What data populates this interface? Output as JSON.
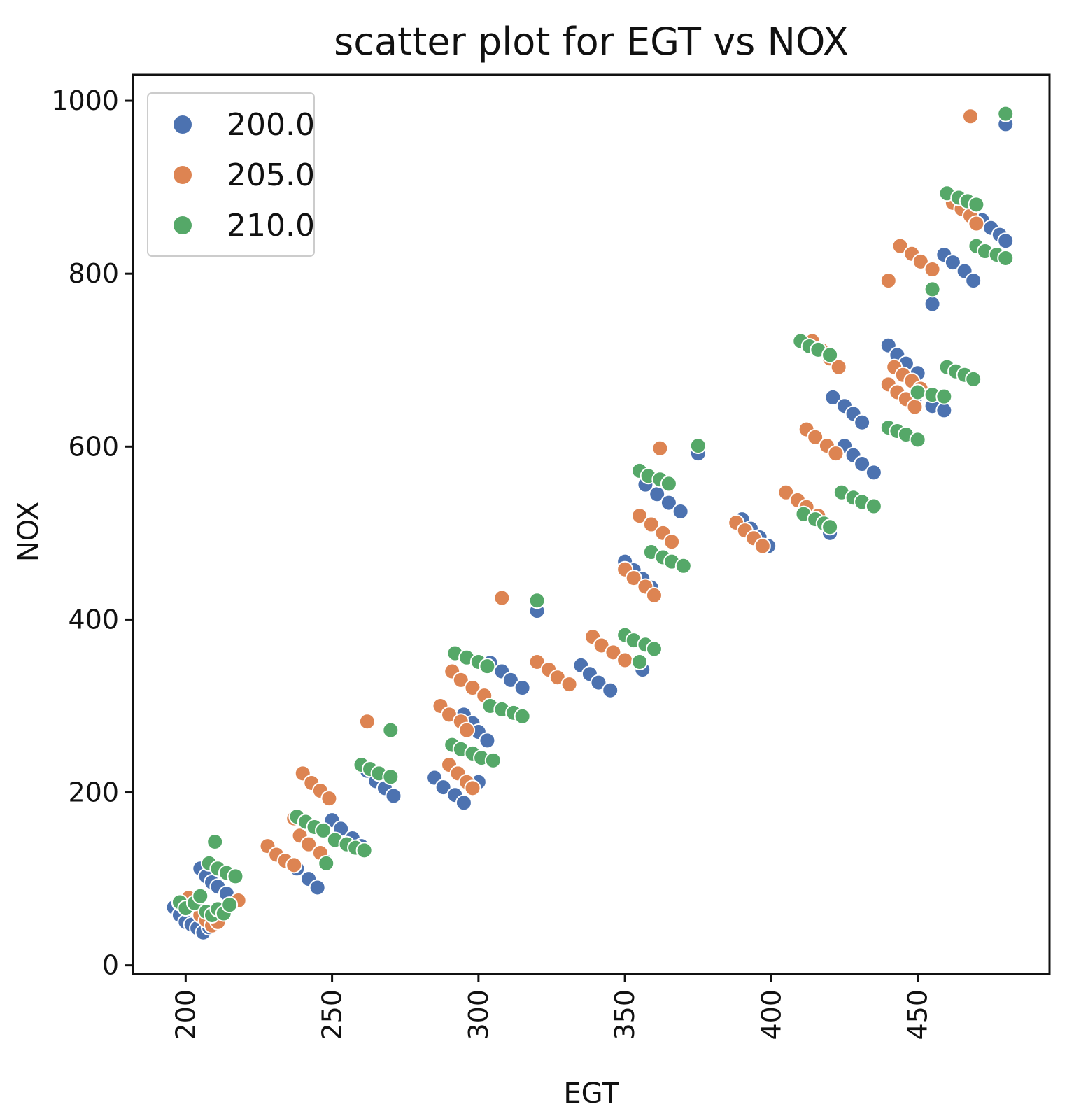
{
  "chart_data": {
    "type": "scatter",
    "title": "scatter plot for EGT vs NOX",
    "xlabel": "EGT",
    "ylabel": "NOX",
    "xlim": [
      182,
      495
    ],
    "ylim": [
      -10,
      1030
    ],
    "xticks": [
      "200",
      "250",
      "300",
      "350",
      "400",
      "450"
    ],
    "yticks": [
      "0",
      "200",
      "400",
      "600",
      "800",
      "1000"
    ],
    "grid": false,
    "legend": {
      "position": "top-left"
    },
    "series": [
      {
        "name": "200.0",
        "color": "#4c72b0",
        "points": [
          [
            196,
            67
          ],
          [
            198,
            58
          ],
          [
            200,
            50
          ],
          [
            202,
            47
          ],
          [
            204,
            43
          ],
          [
            206,
            38
          ],
          [
            208,
            44
          ],
          [
            210,
            48
          ],
          [
            205,
            112
          ],
          [
            207,
            103
          ],
          [
            209,
            96
          ],
          [
            211,
            91
          ],
          [
            214,
            83
          ],
          [
            238,
            112
          ],
          [
            242,
            100
          ],
          [
            245,
            90
          ],
          [
            248,
            120
          ],
          [
            250,
            168
          ],
          [
            253,
            158
          ],
          [
            257,
            147
          ],
          [
            260,
            138
          ],
          [
            262,
            225
          ],
          [
            265,
            213
          ],
          [
            268,
            205
          ],
          [
            271,
            196
          ],
          [
            285,
            217
          ],
          [
            288,
            206
          ],
          [
            292,
            197
          ],
          [
            295,
            188
          ],
          [
            295,
            290
          ],
          [
            298,
            280
          ],
          [
            300,
            270
          ],
          [
            303,
            260
          ],
          [
            300,
            212
          ],
          [
            304,
            350
          ],
          [
            308,
            340
          ],
          [
            311,
            330
          ],
          [
            315,
            321
          ],
          [
            320,
            410
          ],
          [
            335,
            347
          ],
          [
            338,
            337
          ],
          [
            341,
            327
          ],
          [
            345,
            318
          ],
          [
            350,
            467
          ],
          [
            353,
            457
          ],
          [
            356,
            447
          ],
          [
            359,
            437
          ],
          [
            356,
            342
          ],
          [
            357,
            556
          ],
          [
            361,
            545
          ],
          [
            365,
            535
          ],
          [
            369,
            525
          ],
          [
            375,
            592
          ],
          [
            390,
            516
          ],
          [
            393,
            505
          ],
          [
            396,
            495
          ],
          [
            399,
            485
          ],
          [
            420,
            500
          ],
          [
            421,
            657
          ],
          [
            425,
            647
          ],
          [
            428,
            638
          ],
          [
            431,
            628
          ],
          [
            425,
            601
          ],
          [
            428,
            590
          ],
          [
            431,
            580
          ],
          [
            435,
            570
          ],
          [
            440,
            717
          ],
          [
            443,
            706
          ],
          [
            446,
            696
          ],
          [
            450,
            685
          ],
          [
            449,
            655
          ],
          [
            455,
            647
          ],
          [
            459,
            642
          ],
          [
            455,
            765
          ],
          [
            459,
            822
          ],
          [
            462,
            813
          ],
          [
            466,
            803
          ],
          [
            469,
            792
          ],
          [
            472,
            862
          ],
          [
            475,
            853
          ],
          [
            478,
            845
          ],
          [
            480,
            838
          ],
          [
            480,
            973
          ]
        ]
      },
      {
        "name": "205.0",
        "color": "#dd8452",
        "points": [
          [
            198,
            72
          ],
          [
            201,
            78
          ],
          [
            203,
            68
          ],
          [
            205,
            58
          ],
          [
            207,
            52
          ],
          [
            209,
            46
          ],
          [
            211,
            50
          ],
          [
            218,
            75
          ],
          [
            228,
            138
          ],
          [
            231,
            128
          ],
          [
            234,
            121
          ],
          [
            237,
            116
          ],
          [
            237,
            170
          ],
          [
            239,
            150
          ],
          [
            242,
            140
          ],
          [
            246,
            130
          ],
          [
            240,
            222
          ],
          [
            243,
            211
          ],
          [
            246,
            202
          ],
          [
            249,
            193
          ],
          [
            262,
            282
          ],
          [
            287,
            300
          ],
          [
            290,
            290
          ],
          [
            294,
            282
          ],
          [
            296,
            272
          ],
          [
            290,
            232
          ],
          [
            293,
            222
          ],
          [
            296,
            212
          ],
          [
            298,
            205
          ],
          [
            291,
            340
          ],
          [
            294,
            330
          ],
          [
            298,
            321
          ],
          [
            302,
            312
          ],
          [
            308,
            425
          ],
          [
            320,
            351
          ],
          [
            324,
            342
          ],
          [
            327,
            333
          ],
          [
            331,
            325
          ],
          [
            339,
            380
          ],
          [
            342,
            370
          ],
          [
            346,
            362
          ],
          [
            350,
            353
          ],
          [
            350,
            458
          ],
          [
            353,
            448
          ],
          [
            357,
            438
          ],
          [
            360,
            428
          ],
          [
            355,
            520
          ],
          [
            359,
            510
          ],
          [
            363,
            500
          ],
          [
            366,
            490
          ],
          [
            362,
            598
          ],
          [
            388,
            512
          ],
          [
            391,
            503
          ],
          [
            394,
            494
          ],
          [
            397,
            485
          ],
          [
            405,
            547
          ],
          [
            409,
            538
          ],
          [
            412,
            530
          ],
          [
            416,
            520
          ],
          [
            412,
            620
          ],
          [
            415,
            611
          ],
          [
            419,
            601
          ],
          [
            422,
            592
          ],
          [
            414,
            722
          ],
          [
            417,
            712
          ],
          [
            420,
            702
          ],
          [
            423,
            692
          ],
          [
            440,
            672
          ],
          [
            443,
            663
          ],
          [
            446,
            655
          ],
          [
            449,
            646
          ],
          [
            440,
            792
          ],
          [
            442,
            692
          ],
          [
            445,
            683
          ],
          [
            448,
            676
          ],
          [
            451,
            667
          ],
          [
            444,
            832
          ],
          [
            448,
            823
          ],
          [
            451,
            814
          ],
          [
            455,
            805
          ],
          [
            462,
            882
          ],
          [
            465,
            875
          ],
          [
            468,
            867
          ],
          [
            470,
            858
          ],
          [
            468,
            982
          ]
        ]
      },
      {
        "name": "210.0",
        "color": "#55a868",
        "points": [
          [
            198,
            73
          ],
          [
            200,
            66
          ],
          [
            203,
            72
          ],
          [
            205,
            80
          ],
          [
            207,
            62
          ],
          [
            209,
            58
          ],
          [
            211,
            65
          ],
          [
            213,
            60
          ],
          [
            215,
            70
          ],
          [
            210,
            143
          ],
          [
            208,
            118
          ],
          [
            211,
            112
          ],
          [
            214,
            107
          ],
          [
            217,
            103
          ],
          [
            238,
            172
          ],
          [
            241,
            166
          ],
          [
            244,
            160
          ],
          [
            247,
            156
          ],
          [
            248,
            118
          ],
          [
            251,
            145
          ],
          [
            255,
            140
          ],
          [
            258,
            136
          ],
          [
            261,
            133
          ],
          [
            260,
            232
          ],
          [
            263,
            227
          ],
          [
            266,
            222
          ],
          [
            270,
            218
          ],
          [
            270,
            272
          ],
          [
            291,
            255
          ],
          [
            294,
            250
          ],
          [
            298,
            245
          ],
          [
            301,
            240
          ],
          [
            305,
            237
          ],
          [
            292,
            361
          ],
          [
            296,
            356
          ],
          [
            300,
            351
          ],
          [
            303,
            346
          ],
          [
            304,
            300
          ],
          [
            308,
            296
          ],
          [
            312,
            292
          ],
          [
            315,
            288
          ],
          [
            320,
            422
          ],
          [
            350,
            382
          ],
          [
            353,
            376
          ],
          [
            357,
            371
          ],
          [
            360,
            366
          ],
          [
            355,
            351
          ],
          [
            355,
            572
          ],
          [
            358,
            566
          ],
          [
            362,
            562
          ],
          [
            365,
            557
          ],
          [
            359,
            478
          ],
          [
            363,
            472
          ],
          [
            366,
            467
          ],
          [
            370,
            462
          ],
          [
            375,
            601
          ],
          [
            411,
            522
          ],
          [
            415,
            516
          ],
          [
            418,
            511
          ],
          [
            420,
            507
          ],
          [
            410,
            722
          ],
          [
            413,
            716
          ],
          [
            416,
            712
          ],
          [
            420,
            706
          ],
          [
            424,
            547
          ],
          [
            428,
            541
          ],
          [
            431,
            536
          ],
          [
            435,
            531
          ],
          [
            440,
            622
          ],
          [
            443,
            618
          ],
          [
            446,
            614
          ],
          [
            450,
            608
          ],
          [
            450,
            663
          ],
          [
            455,
            660
          ],
          [
            459,
            658
          ],
          [
            455,
            782
          ],
          [
            460,
            692
          ],
          [
            463,
            687
          ],
          [
            466,
            683
          ],
          [
            469,
            678
          ],
          [
            460,
            893
          ],
          [
            464,
            888
          ],
          [
            467,
            884
          ],
          [
            470,
            880
          ],
          [
            470,
            832
          ],
          [
            473,
            826
          ],
          [
            477,
            822
          ],
          [
            480,
            818
          ],
          [
            480,
            985
          ]
        ]
      }
    ]
  }
}
